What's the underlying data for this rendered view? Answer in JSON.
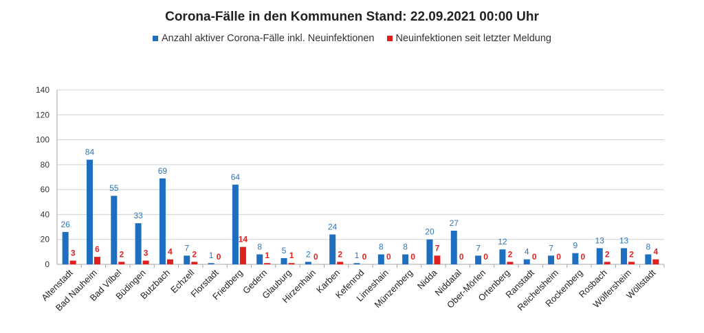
{
  "chart_data": {
    "type": "bar",
    "title": "Corona-Fälle in den Kommunen Stand: 22.09.2021 00:00 Uhr",
    "xlabel": "",
    "ylabel": "",
    "ylim": [
      0,
      140
    ],
    "yticks": [
      0,
      20,
      40,
      60,
      80,
      100,
      120,
      140
    ],
    "grid": true,
    "legend_position": "top",
    "categories": [
      "Altenstadt",
      "Bad Nauheim",
      "Bad Vilbel",
      "Büdingen",
      "Butzbach",
      "Echzell",
      "Florstadt",
      "Friedberg",
      "Gedern",
      "Glauburg",
      "Hirzenhain",
      "Karben",
      "Kefenrod",
      "Limeshain",
      "Münzenberg",
      "Nidda",
      "Niddatal",
      "Ober-Mörlen",
      "Ortenberg",
      "Ranstadt",
      "Reichelsheim",
      "Rockenberg",
      "Rosbach",
      "Wölfersheim",
      "Wöllstadt"
    ],
    "series": [
      {
        "name": "Anzahl aktiver Corona-Fälle inkl. Neuinfektionen",
        "color": "#1f6fc0",
        "label_color": "#2e75b6",
        "values": [
          26,
          84,
          55,
          33,
          69,
          7,
          1,
          64,
          8,
          5,
          2,
          24,
          1,
          8,
          8,
          20,
          27,
          7,
          12,
          4,
          7,
          9,
          13,
          13,
          8
        ]
      },
      {
        "name": "Neuinfektionen seit letzter Meldung",
        "color": "#e01f1f",
        "label_color": "#e01f1f",
        "values": [
          3,
          6,
          2,
          3,
          4,
          2,
          0,
          14,
          1,
          1,
          0,
          2,
          0,
          0,
          0,
          7,
          0,
          0,
          2,
          0,
          0,
          0,
          2,
          2,
          4
        ]
      }
    ]
  }
}
